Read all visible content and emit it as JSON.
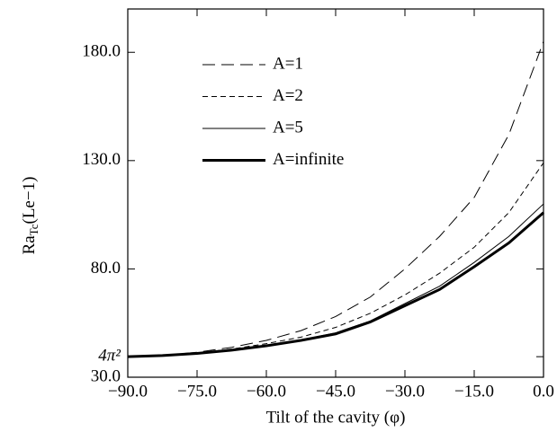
{
  "chart_data": {
    "type": "line",
    "xlabel": "Tilt of the cavity (φ)",
    "ylabel": {
      "base": "Ra",
      "sub": "Tc",
      "rest": "(Le−1)"
    },
    "x": [
      -90,
      -82.5,
      -75,
      -67.5,
      -60,
      -52.5,
      -45,
      -37.5,
      -30,
      -22.5,
      -15,
      -7.5,
      0
    ],
    "series": [
      {
        "name": "A=1",
        "color": "#000000",
        "dash": "14 7",
        "width": 1,
        "values": [
          39.5,
          40.1,
          41.5,
          43.8,
          47,
          51.5,
          58,
          67,
          80,
          95,
          113,
          142,
          185
        ]
      },
      {
        "name": "A=2",
        "color": "#000000",
        "dash": "6 4",
        "width": 1,
        "values": [
          39.5,
          40,
          41.2,
          43,
          45.5,
          48.5,
          53,
          59.5,
          68,
          78,
          90,
          106,
          129
        ]
      },
      {
        "name": "A=5",
        "color": "#000000",
        "dash": "",
        "width": 1,
        "values": [
          39.5,
          40,
          41,
          42.5,
          44.5,
          47.2,
          50.5,
          56,
          64,
          72,
          83,
          95,
          110
        ]
      },
      {
        "name": "A=infinite",
        "color": "#000000",
        "dash": "",
        "width": 3,
        "values": [
          39.5,
          40,
          41,
          42.5,
          44.5,
          47,
          50,
          55.5,
          63,
          70.5,
          81,
          92,
          106
        ]
      }
    ],
    "xlim": [
      -90,
      0
    ],
    "ylim": [
      30,
      200
    ],
    "xticks": [
      {
        "value": -90,
        "label": "−90.0"
      },
      {
        "value": -75,
        "label": "−75.0"
      },
      {
        "value": -60,
        "label": "−60.0"
      },
      {
        "value": -45,
        "label": "−45.0"
      },
      {
        "value": -30,
        "label": "−30.0"
      },
      {
        "value": -15,
        "label": "−15.0"
      },
      {
        "value": 0,
        "label": "0.0"
      }
    ],
    "yticks": [
      {
        "value": 30,
        "label": "30.0"
      },
      {
        "value": 39.48,
        "label": "4π²"
      },
      {
        "value": 80,
        "label": "80.0"
      },
      {
        "value": 130,
        "label": "130.0"
      },
      {
        "value": 180,
        "label": "180.0"
      }
    ]
  }
}
